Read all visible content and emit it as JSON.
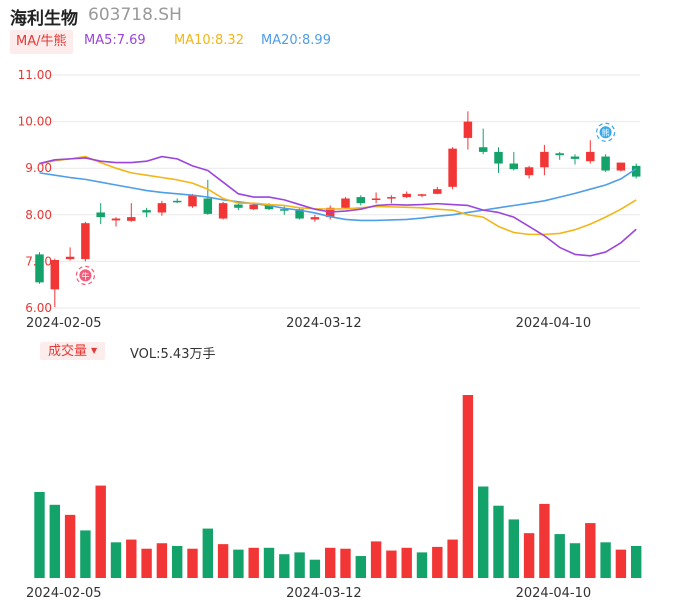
{
  "header": {
    "stock_name": "海利生物",
    "stock_code": "603718.SH",
    "ma_selector_label": "MA/牛熊",
    "ma5_label": "MA5:7.69",
    "ma10_label": "MA10:8.32",
    "ma20_label": "MA20:8.99"
  },
  "volume_panel": {
    "selector_label": "成交量",
    "vol_label": "VOL:5.43万手"
  },
  "markers": {
    "bull_glyph": "牛",
    "bear_glyph": "熊"
  },
  "colors": {
    "up": "#f23535",
    "down": "#13a26a",
    "ma5": "#9b45dd",
    "ma10": "#f3b619",
    "ma20": "#4f9ee8",
    "grid": "#e9e9e9",
    "axis_text": "#e53935",
    "date_text": "#333333"
  },
  "chart_data": [
    {
      "type": "candlestick",
      "y_ticks": [
        "11.00",
        "10.00",
        "9.00",
        "8.00",
        "7.00",
        "6.00"
      ],
      "ylim": [
        6.0,
        11.0
      ],
      "x_tick_labels": [
        {
          "index": 1,
          "label": "2024-02-05"
        },
        {
          "index": 18,
          "label": "2024-03-12"
        },
        {
          "index": 33,
          "label": "2024-04-10"
        }
      ],
      "candles": [
        {
          "o": 7.15,
          "h": 7.2,
          "l": 6.52,
          "c": 6.55
        },
        {
          "o": 6.4,
          "h": 7.06,
          "l": 6.02,
          "c": 7.03
        },
        {
          "o": 7.05,
          "h": 7.3,
          "l": 7.02,
          "c": 7.1
        },
        {
          "o": 7.05,
          "h": 7.85,
          "l": 7.0,
          "c": 7.82
        },
        {
          "o": 8.05,
          "h": 8.25,
          "l": 7.8,
          "c": 7.95
        },
        {
          "o": 7.88,
          "h": 7.95,
          "l": 7.75,
          "c": 7.92
        },
        {
          "o": 7.87,
          "h": 8.25,
          "l": 7.85,
          "c": 7.95
        },
        {
          "o": 8.1,
          "h": 8.15,
          "l": 7.95,
          "c": 8.05
        },
        {
          "o": 8.05,
          "h": 8.3,
          "l": 7.98,
          "c": 8.25
        },
        {
          "o": 8.3,
          "h": 8.35,
          "l": 8.25,
          "c": 8.28
        },
        {
          "o": 8.18,
          "h": 8.45,
          "l": 8.15,
          "c": 8.42
        },
        {
          "o": 8.35,
          "h": 8.75,
          "l": 8.0,
          "c": 8.02
        },
        {
          "o": 7.92,
          "h": 8.28,
          "l": 7.9,
          "c": 8.25
        },
        {
          "o": 8.22,
          "h": 8.28,
          "l": 8.1,
          "c": 8.15
        },
        {
          "o": 8.12,
          "h": 8.25,
          "l": 8.1,
          "c": 8.22
        },
        {
          "o": 8.2,
          "h": 8.25,
          "l": 8.1,
          "c": 8.12
        },
        {
          "o": 8.12,
          "h": 8.18,
          "l": 8.0,
          "c": 8.1
        },
        {
          "o": 8.12,
          "h": 8.15,
          "l": 7.9,
          "c": 7.92
        },
        {
          "o": 7.9,
          "h": 8.0,
          "l": 7.85,
          "c": 7.95
        },
        {
          "o": 7.95,
          "h": 8.2,
          "l": 7.9,
          "c": 8.15
        },
        {
          "o": 8.15,
          "h": 8.38,
          "l": 8.12,
          "c": 8.35
        },
        {
          "o": 8.38,
          "h": 8.42,
          "l": 8.2,
          "c": 8.25
        },
        {
          "o": 8.33,
          "h": 8.48,
          "l": 8.25,
          "c": 8.35
        },
        {
          "o": 8.35,
          "h": 8.42,
          "l": 8.25,
          "c": 8.38
        },
        {
          "o": 8.38,
          "h": 8.5,
          "l": 8.36,
          "c": 8.45
        },
        {
          "o": 8.42,
          "h": 8.45,
          "l": 8.38,
          "c": 8.44
        },
        {
          "o": 8.45,
          "h": 8.6,
          "l": 8.44,
          "c": 8.55
        },
        {
          "o": 8.6,
          "h": 9.45,
          "l": 8.55,
          "c": 9.42
        },
        {
          "o": 9.65,
          "h": 10.22,
          "l": 9.4,
          "c": 10.0
        },
        {
          "o": 9.45,
          "h": 9.85,
          "l": 9.3,
          "c": 9.35
        },
        {
          "o": 9.35,
          "h": 9.45,
          "l": 8.9,
          "c": 9.1
        },
        {
          "o": 9.1,
          "h": 9.35,
          "l": 8.95,
          "c": 8.98
        },
        {
          "o": 8.85,
          "h": 9.05,
          "l": 8.78,
          "c": 9.02
        },
        {
          "o": 9.02,
          "h": 9.5,
          "l": 8.85,
          "c": 9.35
        },
        {
          "o": 9.32,
          "h": 9.35,
          "l": 9.18,
          "c": 9.28
        },
        {
          "o": 9.25,
          "h": 9.3,
          "l": 9.08,
          "c": 9.2
        },
        {
          "o": 9.15,
          "h": 9.6,
          "l": 9.1,
          "c": 9.35
        },
        {
          "o": 9.25,
          "h": 9.3,
          "l": 8.92,
          "c": 8.95
        },
        {
          "o": 8.95,
          "h": 9.12,
          "l": 8.93,
          "c": 9.12
        },
        {
          "o": 9.05,
          "h": 9.1,
          "l": 8.78,
          "c": 8.82
        }
      ],
      "ma5": [
        9.1,
        9.18,
        9.2,
        9.22,
        9.15,
        9.12,
        9.12,
        9.15,
        9.25,
        9.2,
        9.05,
        8.95,
        8.7,
        8.45,
        8.38,
        8.38,
        8.32,
        8.22,
        8.12,
        8.06,
        8.08,
        8.12,
        8.2,
        8.22,
        8.21,
        8.22,
        8.24,
        8.22,
        8.2,
        8.1,
        8.05,
        7.95,
        7.75,
        7.55,
        7.3,
        7.15,
        7.12,
        7.2,
        7.4,
        7.69
      ],
      "ma10": [
        9.1,
        9.16,
        9.2,
        9.25,
        9.12,
        9.0,
        8.9,
        8.85,
        8.8,
        8.75,
        8.68,
        8.55,
        8.35,
        8.25,
        8.25,
        8.22,
        8.2,
        8.15,
        8.13,
        8.12,
        8.13,
        8.15,
        8.18,
        8.17,
        8.16,
        8.15,
        8.12,
        8.1,
        8.0,
        7.95,
        7.75,
        7.62,
        7.58,
        7.58,
        7.6,
        7.68,
        7.8,
        7.95,
        8.12,
        8.32
      ],
      "ma20": [
        8.9,
        8.85,
        8.8,
        8.76,
        8.7,
        8.64,
        8.58,
        8.52,
        8.48,
        8.45,
        8.42,
        8.38,
        8.32,
        8.28,
        8.24,
        8.2,
        8.14,
        8.1,
        8.04,
        7.96,
        7.9,
        7.88,
        7.88,
        7.89,
        7.9,
        7.93,
        7.97,
        8.0,
        8.05,
        8.1,
        8.15,
        8.2,
        8.25,
        8.3,
        8.38,
        8.46,
        8.55,
        8.64,
        8.77,
        8.99
      ]
    },
    {
      "type": "bar",
      "volume_max": 1.0,
      "volume": [
        {
          "v": 0.47,
          "up": false
        },
        {
          "v": 0.4,
          "up": false
        },
        {
          "v": 0.345,
          "up": true
        },
        {
          "v": 0.26,
          "up": false
        },
        {
          "v": 0.505,
          "up": true
        },
        {
          "v": 0.195,
          "up": false
        },
        {
          "v": 0.21,
          "up": true
        },
        {
          "v": 0.16,
          "up": true
        },
        {
          "v": 0.19,
          "up": true
        },
        {
          "v": 0.175,
          "up": false
        },
        {
          "v": 0.16,
          "up": true
        },
        {
          "v": 0.27,
          "up": false
        },
        {
          "v": 0.185,
          "up": true
        },
        {
          "v": 0.155,
          "up": false
        },
        {
          "v": 0.165,
          "up": true
        },
        {
          "v": 0.165,
          "up": false
        },
        {
          "v": 0.13,
          "up": false
        },
        {
          "v": 0.14,
          "up": false
        },
        {
          "v": 0.1,
          "up": false
        },
        {
          "v": 0.165,
          "up": true
        },
        {
          "v": 0.16,
          "up": true
        },
        {
          "v": 0.12,
          "up": false
        },
        {
          "v": 0.2,
          "up": true
        },
        {
          "v": 0.15,
          "up": true
        },
        {
          "v": 0.165,
          "up": true
        },
        {
          "v": 0.14,
          "up": false
        },
        {
          "v": 0.17,
          "up": true
        },
        {
          "v": 0.21,
          "up": true
        },
        {
          "v": 1.0,
          "up": true
        },
        {
          "v": 0.5,
          "up": false
        },
        {
          "v": 0.395,
          "up": false
        },
        {
          "v": 0.32,
          "up": false
        },
        {
          "v": 0.245,
          "up": true
        },
        {
          "v": 0.405,
          "up": true
        },
        {
          "v": 0.24,
          "up": false
        },
        {
          "v": 0.19,
          "up": false
        },
        {
          "v": 0.3,
          "up": true
        },
        {
          "v": 0.195,
          "up": false
        },
        {
          "v": 0.155,
          "up": true
        },
        {
          "v": 0.175,
          "up": false
        }
      ]
    }
  ]
}
